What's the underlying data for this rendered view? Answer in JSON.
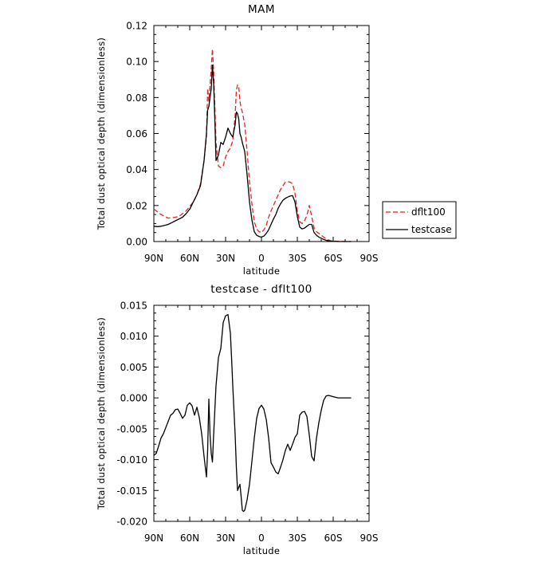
{
  "chart_data": [
    {
      "type": "line",
      "title": "MAM",
      "xlabel": "latitude",
      "ylabel": "Total dust optical depth (dimensionless)",
      "xlim": [
        90,
        -90
      ],
      "ylim": [
        0,
        0.12
      ],
      "x_ticks": [
        90,
        60,
        30,
        0,
        -30,
        -60,
        -90
      ],
      "x_tick_labels": [
        "90N",
        "60N",
        "30N",
        "0",
        "30S",
        "60S",
        "90S"
      ],
      "y_ticks": [
        0,
        0.02,
        0.04,
        0.06,
        0.08,
        0.1,
        0.12
      ],
      "y_tick_labels": [
        "0.00",
        "0.02",
        "0.04",
        "0.06",
        "0.08",
        "0.10",
        "0.12"
      ],
      "legend_position": "right",
      "series": [
        {
          "name": "dflt100",
          "color": "#e8231f",
          "dash": "dashed",
          "x": [
            90,
            87,
            84,
            81,
            78,
            75,
            72,
            69,
            66,
            63,
            60,
            57,
            54,
            51,
            48,
            46,
            45,
            44,
            42,
            41,
            40,
            39,
            38,
            36,
            34,
            32,
            30,
            28,
            26,
            24,
            22,
            21,
            20,
            19,
            18,
            17,
            16,
            14,
            12,
            10,
            8,
            6,
            4,
            2,
            0,
            -2,
            -4,
            -6,
            -8,
            -10,
            -12,
            -14,
            -16,
            -18,
            -20,
            -22,
            -24,
            -26,
            -28,
            -30,
            -32,
            -34,
            -36,
            -38,
            -40,
            -42,
            -44,
            -46,
            -48,
            -50,
            -52,
            -54,
            -56,
            -58,
            -60,
            -62,
            -64,
            -66,
            -68,
            -70,
            -72,
            -75
          ],
          "y": [
            0.018,
            0.0165,
            0.015,
            0.014,
            0.013,
            0.0132,
            0.0135,
            0.014,
            0.0155,
            0.017,
            0.0195,
            0.022,
            0.026,
            0.032,
            0.045,
            0.058,
            0.085,
            0.078,
            0.096,
            0.107,
            0.095,
            0.075,
            0.055,
            0.042,
            0.041,
            0.042,
            0.047,
            0.05,
            0.052,
            0.056,
            0.07,
            0.084,
            0.087,
            0.086,
            0.078,
            0.074,
            0.072,
            0.065,
            0.05,
            0.033,
            0.021,
            0.011,
            0.007,
            0.0055,
            0.005,
            0.0065,
            0.009,
            0.0135,
            0.017,
            0.02,
            0.023,
            0.026,
            0.029,
            0.031,
            0.033,
            0.0333,
            0.033,
            0.032,
            0.027,
            0.017,
            0.011,
            0.01,
            0.0115,
            0.0145,
            0.02,
            0.014,
            0.0075,
            0.0055,
            0.0045,
            0.0035,
            0.0025,
            0.0015,
            0.0009,
            0.0005,
            0.0003,
            0.0002,
            0.0001,
            0.0001,
            0.0001,
            0.0,
            0.0,
            0.0
          ]
        },
        {
          "name": "testcase",
          "color": "#000000",
          "dash": "solid",
          "x": [
            90,
            87,
            84,
            81,
            78,
            75,
            72,
            69,
            66,
            63,
            60,
            57,
            54,
            51,
            48,
            46,
            45,
            44,
            42,
            41,
            40,
            39,
            38,
            36,
            34,
            32,
            30,
            28,
            26,
            24,
            22,
            21,
            20,
            19,
            18,
            17,
            16,
            14,
            12,
            10,
            8,
            6,
            4,
            2,
            0,
            -2,
            -4,
            -6,
            -8,
            -10,
            -12,
            -14,
            -16,
            -18,
            -20,
            -22,
            -24,
            -26,
            -28,
            -30,
            -32,
            -34,
            -36,
            -38,
            -40,
            -42,
            -44,
            -46,
            -48,
            -50,
            -52,
            -54,
            -56,
            -58,
            -60,
            -62,
            -64,
            -66,
            -68,
            -70,
            -72,
            -75
          ],
          "y": [
            0.0085,
            0.0083,
            0.0085,
            0.009,
            0.0095,
            0.0105,
            0.0115,
            0.0125,
            0.0135,
            0.0155,
            0.018,
            0.022,
            0.026,
            0.031,
            0.045,
            0.06,
            0.073,
            0.075,
            0.085,
            0.098,
            0.088,
            0.068,
            0.045,
            0.048,
            0.055,
            0.054,
            0.058,
            0.063,
            0.06,
            0.058,
            0.065,
            0.072,
            0.071,
            0.068,
            0.06,
            0.058,
            0.055,
            0.05,
            0.037,
            0.022,
            0.012,
            0.0055,
            0.0035,
            0.0028,
            0.0025,
            0.003,
            0.0045,
            0.0065,
            0.0095,
            0.0125,
            0.015,
            0.0185,
            0.021,
            0.023,
            0.024,
            0.0247,
            0.0253,
            0.0255,
            0.022,
            0.014,
            0.008,
            0.007,
            0.0075,
            0.0085,
            0.0095,
            0.0095,
            0.005,
            0.0035,
            0.0025,
            0.0018,
            0.0012,
            0.0007,
            0.0004,
            0.0002,
            0.0001,
            0.0001,
            0.0,
            0.0,
            0.0,
            0.0,
            0.0,
            0.0
          ]
        }
      ]
    },
    {
      "type": "line",
      "title": "testcase - dflt100",
      "xlabel": "latitude",
      "ylabel": "Total dust optical depth (dimensionless)",
      "xlim": [
        90,
        -90
      ],
      "ylim": [
        -0.02,
        0.015
      ],
      "x_ticks": [
        90,
        60,
        30,
        0,
        -30,
        -60,
        -90
      ],
      "x_tick_labels": [
        "90N",
        "60N",
        "30N",
        "0",
        "30S",
        "60S",
        "90S"
      ],
      "y_ticks": [
        -0.02,
        -0.015,
        -0.01,
        -0.005,
        0,
        0.005,
        0.01,
        0.015
      ],
      "y_tick_labels": [
        "-0.020",
        "-0.015",
        "-0.010",
        "-0.005",
        "0.000",
        "0.005",
        "0.010",
        "0.015"
      ],
      "series": [
        {
          "name": "",
          "color": "#000000",
          "dash": "solid",
          "x": [
            90,
            88,
            86,
            84,
            82,
            80,
            78,
            76,
            74,
            72,
            70,
            68,
            66,
            64,
            62,
            60,
            58,
            56,
            54,
            52,
            50,
            48,
            46,
            45,
            44,
            43,
            42,
            41,
            40,
            39,
            38,
            37,
            36,
            34,
            32,
            30,
            28,
            26,
            25,
            24,
            22,
            21,
            20,
            19,
            18,
            17,
            16,
            15,
            14,
            12,
            10,
            8,
            6,
            4,
            2,
            0,
            -2,
            -4,
            -6,
            -8,
            -10,
            -12,
            -14,
            -16,
            -18,
            -20,
            -22,
            -24,
            -26,
            -28,
            -30,
            -32,
            -34,
            -36,
            -38,
            -40,
            -42,
            -44,
            -46,
            -48,
            -50,
            -52,
            -54,
            -56,
            -58,
            -60,
            -62,
            -64,
            -66,
            -68,
            -70,
            -72,
            -75
          ],
          "y": [
            -0.0093,
            -0.009,
            -0.0078,
            -0.0065,
            -0.0058,
            -0.0048,
            -0.0038,
            -0.0028,
            -0.0025,
            -0.0019,
            -0.0018,
            -0.0025,
            -0.0033,
            -0.0028,
            -0.0012,
            -0.0008,
            -0.0013,
            -0.0028,
            -0.0015,
            -0.0032,
            -0.0058,
            -0.0095,
            -0.0128,
            -0.0085,
            -0.0002,
            -0.006,
            -0.009,
            -0.0104,
            -0.006,
            -0.002,
            0.002,
            0.0042,
            0.0065,
            0.008,
            0.0122,
            0.0133,
            0.0135,
            0.0105,
            0.0065,
            0.002,
            -0.006,
            -0.0112,
            -0.015,
            -0.0145,
            -0.014,
            -0.016,
            -0.0182,
            -0.0184,
            -0.0182,
            -0.0165,
            -0.014,
            -0.0103,
            -0.0065,
            -0.0033,
            -0.0017,
            -0.0012,
            -0.0018,
            -0.0035,
            -0.0065,
            -0.0105,
            -0.0112,
            -0.012,
            -0.0123,
            -0.0112,
            -0.01,
            -0.0085,
            -0.0075,
            -0.0085,
            -0.0075,
            -0.0064,
            -0.0058,
            -0.0028,
            -0.0023,
            -0.0022,
            -0.003,
            -0.006,
            -0.0095,
            -0.0102,
            -0.0065,
            -0.004,
            -0.002,
            -0.0004,
            0.0003,
            0.0004,
            0.0003,
            0.0002,
            0.0001,
            0.0,
            0.0,
            0.0,
            0.0,
            0.0,
            0.0
          ]
        }
      ]
    }
  ]
}
